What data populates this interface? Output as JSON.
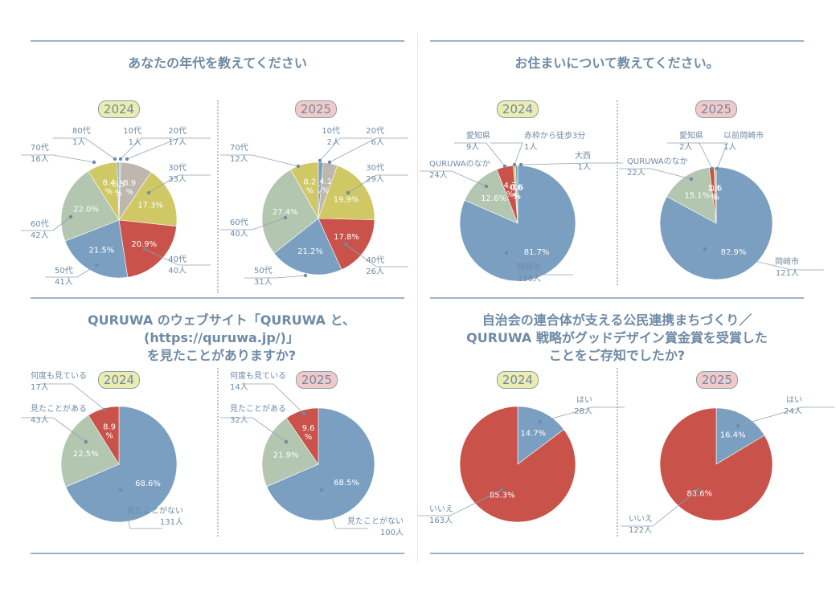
{
  "colors": {
    "blue": "#7b9fc1",
    "red": "#c9524a",
    "yellow": "#cfc865",
    "sage": "#b2c6b0",
    "gray": "#bdb7ae",
    "text": "#6e8aa6",
    "white_label": "#ffffff"
  },
  "year_badges": {
    "y2024": "2024",
    "y2025": "2025"
  },
  "chart_data": [
    {
      "id": "age",
      "type": "pie",
      "title": "あなたの年代を教えてください",
      "panels": [
        {
          "year": "2024",
          "slices": [
            {
              "name": "10代",
              "count": "1人",
              "pct": 0.5,
              "label": "0.5\n%",
              "color": "gray"
            },
            {
              "name": "20代",
              "count": "17人",
              "pct": 8.9,
              "label": "8.9\n%",
              "color": "gray"
            },
            {
              "name": "30代",
              "count": "33人",
              "pct": 17.3,
              "label": "17.3%",
              "color": "yellow"
            },
            {
              "name": "40代",
              "count": "40人",
              "pct": 20.9,
              "label": "20.9%",
              "color": "red"
            },
            {
              "name": "50代",
              "count": "41人",
              "pct": 21.5,
              "label": "21.5%",
              "color": "blue"
            },
            {
              "name": "60代",
              "count": "42人",
              "pct": 22.0,
              "label": "22.0%",
              "color": "sage"
            },
            {
              "name": "70代",
              "count": "16人",
              "pct": 8.4,
              "label": "8.4\n%",
              "color": "yellow"
            },
            {
              "name": "80代",
              "count": "1人",
              "pct": 0.5,
              "label": "0.5\n%",
              "color": "blue"
            }
          ]
        },
        {
          "year": "2025",
          "slices": [
            {
              "name": "10代",
              "count": "2人",
              "pct": 1.4,
              "label": "1.4\n%",
              "color": "blue"
            },
            {
              "name": "20代",
              "count": "6人",
              "pct": 4.1,
              "label": "4.1\n%",
              "color": "gray"
            },
            {
              "name": "30代",
              "count": "29人",
              "pct": 19.9,
              "label": "19.9%",
              "color": "yellow"
            },
            {
              "name": "40代",
              "count": "26人",
              "pct": 17.8,
              "label": "17.8%",
              "color": "red"
            },
            {
              "name": "50代",
              "count": "31人",
              "pct": 21.2,
              "label": "21.2%",
              "color": "blue"
            },
            {
              "name": "60代",
              "count": "40人",
              "pct": 27.4,
              "label": "27.4%",
              "color": "sage"
            },
            {
              "name": "70代",
              "count": "12人",
              "pct": 8.2,
              "label": "8.2\n%",
              "color": "yellow"
            }
          ]
        }
      ]
    },
    {
      "id": "residence",
      "type": "pie",
      "title": "お住まいについて教えてください。",
      "panels": [
        {
          "year": "2024",
          "slices": [
            {
              "name": "岡崎市",
              "count": "156人",
              "pct": 81.7,
              "label": "81.7%",
              "color": "blue"
            },
            {
              "name": "QURUWAのなか",
              "count": "24人",
              "pct": 12.6,
              "label": "12.6%",
              "color": "sage"
            },
            {
              "name": "愛知県",
              "count": "9人",
              "pct": 4.7,
              "label": "4.7\n%",
              "color": "red"
            },
            {
              "name": "赤枠から徒歩3分",
              "count": "1人",
              "pct": 0.6,
              "label": "0.6\n%",
              "color": "yellow"
            },
            {
              "name": "大西",
              "count": "1人",
              "pct": 0.6,
              "label": "0.6\n%",
              "color": "blue"
            }
          ]
        },
        {
          "year": "2025",
          "slices": [
            {
              "name": "岡崎市",
              "count": "121人",
              "pct": 82.9,
              "label": "82.9%",
              "color": "blue"
            },
            {
              "name": "QURUWAのなか",
              "count": "22人",
              "pct": 15.1,
              "label": "15.1%",
              "color": "sage"
            },
            {
              "name": "愛知県",
              "count": "2人",
              "pct": 1.4,
              "label": "1.4\n%",
              "color": "red"
            },
            {
              "name": "以前岡崎市",
              "count": "1人",
              "pct": 0.6,
              "label": "0.6\n%",
              "color": "yellow"
            }
          ]
        }
      ]
    },
    {
      "id": "website",
      "type": "pie",
      "title": "QURUWA のウェブサイト「QURUWA と、(https://quruwa.jp/)」\nを見たことがありますか?",
      "panels": [
        {
          "year": "2024",
          "slices": [
            {
              "name": "見たことがない",
              "count": "131人",
              "pct": 68.6,
              "label": "68.6%",
              "color": "blue"
            },
            {
              "name": "見たことがある",
              "count": "43人",
              "pct": 22.5,
              "label": "22.5%",
              "color": "sage"
            },
            {
              "name": "何度も見ている",
              "count": "17人",
              "pct": 8.9,
              "label": "8.9\n%",
              "color": "red"
            }
          ]
        },
        {
          "year": "2025",
          "slices": [
            {
              "name": "見たことがない",
              "count": "100人",
              "pct": 68.5,
              "label": "68.5%",
              "color": "blue"
            },
            {
              "name": "見たことがある",
              "count": "32人",
              "pct": 21.9,
              "label": "21.9%",
              "color": "sage"
            },
            {
              "name": "何度も見ている",
              "count": "14人",
              "pct": 9.6,
              "label": "9.6\n%",
              "color": "red"
            }
          ]
        }
      ]
    },
    {
      "id": "award",
      "type": "pie",
      "title": "自治会の連合体が支える公民連携まちづくり／\nQURUWA 戦略がグッドデザイン賞金賞を受賞した\nことをご存知でしたか?",
      "panels": [
        {
          "year": "2024",
          "slices": [
            {
              "name": "はい",
              "count": "28人",
              "pct": 14.7,
              "label": "14.7%",
              "color": "blue"
            },
            {
              "name": "いいえ",
              "count": "163人",
              "pct": 85.3,
              "label": "85.3%",
              "color": "red"
            }
          ]
        },
        {
          "year": "2025",
          "slices": [
            {
              "name": "はい",
              "count": "24人",
              "pct": 16.4,
              "label": "16.4%",
              "color": "blue"
            },
            {
              "name": "いいえ",
              "count": "122人",
              "pct": 83.6,
              "label": "83.6%",
              "color": "red"
            }
          ]
        }
      ]
    }
  ]
}
